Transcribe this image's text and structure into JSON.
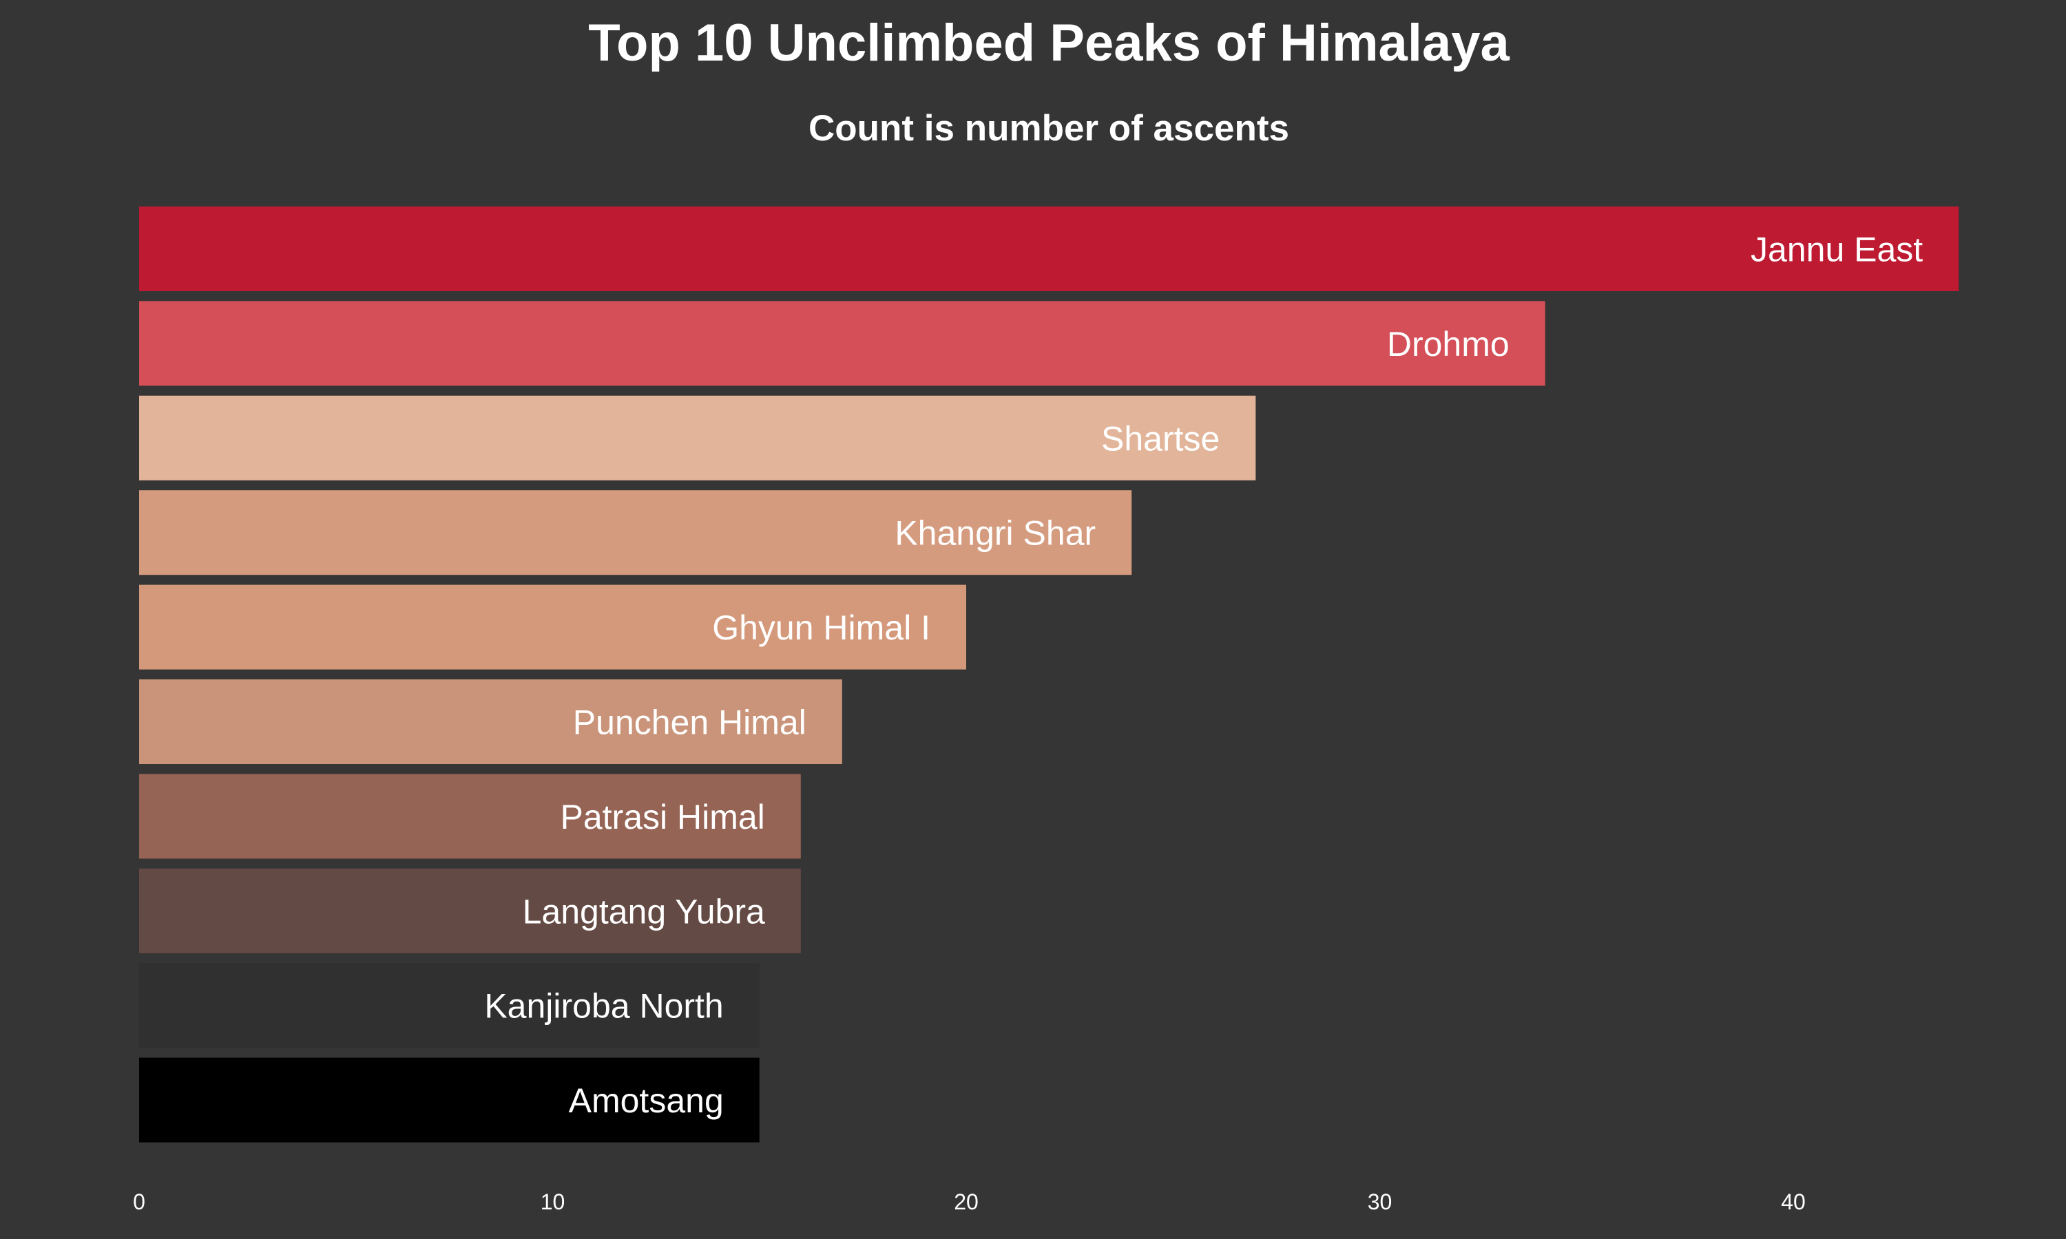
{
  "chart_data": {
    "type": "bar",
    "orientation": "horizontal",
    "title": "Top 10 Unclimbed Peaks of Himalaya",
    "subtitle": "Count is number of ascents",
    "xlabel": "",
    "ylabel": "",
    "xlim": [
      0,
      45
    ],
    "x_ticks": [
      0,
      10,
      20,
      30,
      40
    ],
    "grid": false,
    "legend": "none",
    "label_color": "#ffffff",
    "background_color": "#353535",
    "bars": [
      {
        "name": "Jannu East",
        "value": 44,
        "color": "#be1a31"
      },
      {
        "name": "Drohmo",
        "value": 34,
        "color": "#d44f58"
      },
      {
        "name": "Shartse",
        "value": 27,
        "color": "#e2b59a"
      },
      {
        "name": "Khangri Shar",
        "value": 24,
        "color": "#d49b7f"
      },
      {
        "name": "Ghyun Himal I",
        "value": 20,
        "color": "#d4997b"
      },
      {
        "name": "Punchen Himal",
        "value": 17,
        "color": "#c99479"
      },
      {
        "name": "Patrasi Himal",
        "value": 16,
        "color": "#956455"
      },
      {
        "name": "Langtang Yubra",
        "value": 16,
        "color": "#644a44"
      },
      {
        "name": "Kanjiroba North",
        "value": 15,
        "color": "#303030"
      },
      {
        "name": "Amotsang",
        "value": 15,
        "color": "#000000"
      }
    ]
  }
}
